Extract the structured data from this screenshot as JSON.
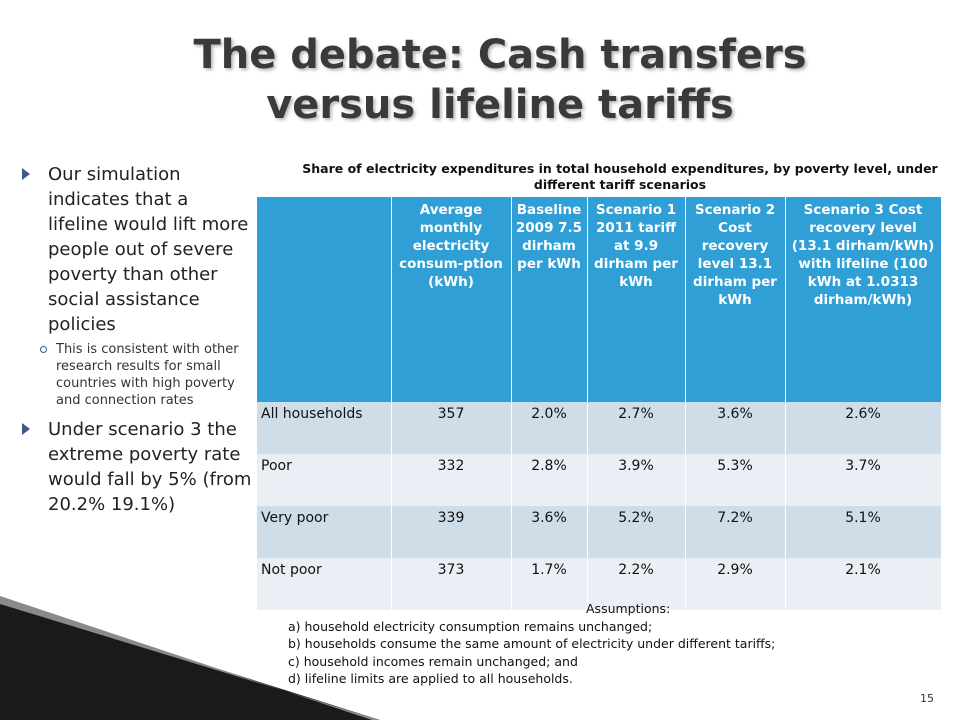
{
  "title_line1": "The debate: Cash transfers",
  "title_line2": "versus lifeline tariffs",
  "bullets": {
    "b1": "Our simulation indicates that a lifeline would lift more people out of severe poverty than other social assistance policies",
    "sub1": "This is consistent with other research results for small countries with high poverty and connection rates",
    "b2": "Under scenario 3 the extreme poverty rate would fall by 5% (from 20.2% 19.1%)"
  },
  "table": {
    "caption": "Share of electricity expenditures in total household expenditures, by poverty level, under different tariff scenarios",
    "headers": {
      "blank": "",
      "avg": "Average monthly electricity consum-ption (kWh)",
      "base": "Baseline 2009 7.5 dirham per kWh",
      "s1": "Scenario 1 2011 tariff at 9.9 dirham per kWh",
      "s2": "Scenario 2 Cost recovery level 13.1 dirham per kWh",
      "s3": "Scenario 3 Cost recovery level (13.1 dirham/kWh) with lifeline (100 kWh at 1.0313 dirham/kWh)"
    },
    "rows": [
      {
        "label": "All households",
        "avg": "357",
        "base": "2.0%",
        "s1": "2.7%",
        "s2": "3.6%",
        "s3": "2.6%"
      },
      {
        "label": "Poor",
        "avg": "332",
        "base": "2.8%",
        "s1": "3.9%",
        "s2": "5.3%",
        "s3": "3.7%"
      },
      {
        "label": "Very poor",
        "avg": "339",
        "base": "3.6%",
        "s1": "5.2%",
        "s2": "7.2%",
        "s3": "5.1%"
      },
      {
        "label": "Not poor",
        "avg": "373",
        "base": "1.7%",
        "s1": "2.2%",
        "s2": "2.9%",
        "s3": "2.1%"
      }
    ]
  },
  "assumptions": {
    "head": "Assumptions:",
    "a": "a) household electricity consumption remains unchanged;",
    "b": "b) households consume the same amount of electricity under different tariffs;",
    "c": "c) household incomes remain unchanged; and",
    "d": "d) lifeline limits are applied to all households."
  },
  "page_number": "15",
  "colors": {
    "header_blue": "#2f9fd6",
    "row_dark": "#cfdde8",
    "row_light": "#e9eff5",
    "bullet_arrow": "#3a5a8c"
  }
}
